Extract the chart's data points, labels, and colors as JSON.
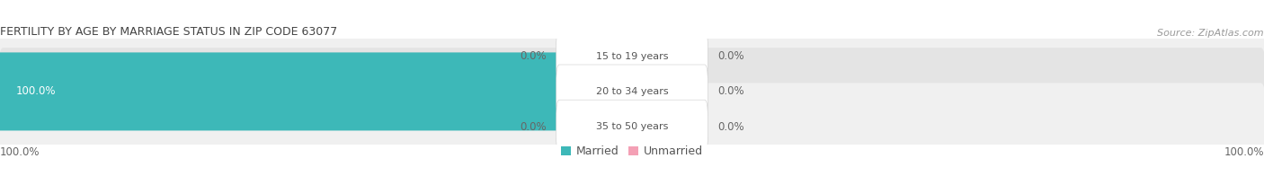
{
  "title": "FERTILITY BY AGE BY MARRIAGE STATUS IN ZIP CODE 63077",
  "source": "Source: ZipAtlas.com",
  "categories": [
    "15 to 19 years",
    "20 to 34 years",
    "35 to 50 years"
  ],
  "married_values": [
    0.0,
    100.0,
    0.0
  ],
  "unmarried_values": [
    0.0,
    0.0,
    0.0
  ],
  "married_color": "#3db8b8",
  "unmarried_color": "#f4a0b5",
  "row_bg_light": "#f0f0f0",
  "row_bg_dark": "#e4e4e4",
  "title_fontsize": 9,
  "source_fontsize": 8,
  "label_fontsize": 8.5,
  "category_fontsize": 8,
  "legend_fontsize": 9,
  "axis_label_left": "100.0%",
  "axis_label_right": "100.0%",
  "figsize": [
    14.06,
    1.96
  ],
  "dpi": 100,
  "max_val": 100.0
}
